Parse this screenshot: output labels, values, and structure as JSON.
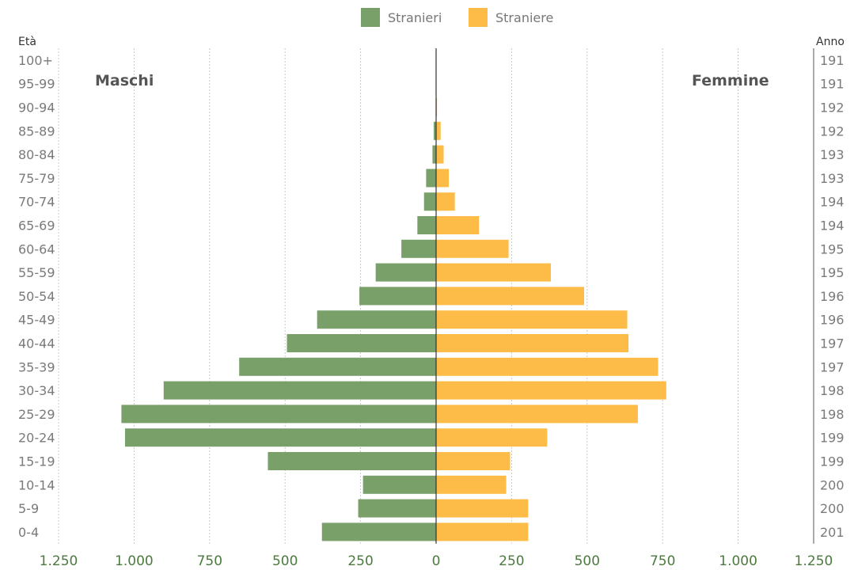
{
  "chart_data": {
    "type": "bar",
    "orientation": "horizontal-population-pyramid",
    "legend": [
      {
        "name": "Stranieri",
        "color": "#7aa06a"
      },
      {
        "name": "Straniere",
        "color": "#fdbb47"
      }
    ],
    "left_axis_title": "Età",
    "right_axis_title": "Anno",
    "left_side_label": "Maschi",
    "right_side_label": "Femmine",
    "categories": [
      "0-4",
      "5-9",
      "10-14",
      "15-19",
      "20-24",
      "25-29",
      "30-34",
      "35-39",
      "40-44",
      "45-49",
      "50-54",
      "55-59",
      "60-64",
      "65-69",
      "70-74",
      "75-79",
      "80-84",
      "85-89",
      "90-94",
      "95-99",
      "100+"
    ],
    "years": [
      "201",
      "200",
      "200",
      "199",
      "199",
      "198",
      "198",
      "197",
      "197",
      "196",
      "196",
      "195",
      "195",
      "194",
      "194",
      "193",
      "193",
      "192",
      "192",
      "191",
      "191"
    ],
    "series": [
      {
        "name": "Stranieri",
        "color": "#7aa06a",
        "values": [
          378,
          258,
          242,
          557,
          1030,
          1042,
          902,
          652,
          494,
          394,
          254,
          200,
          115,
          62,
          40,
          33,
          12,
          8,
          1,
          0,
          0
        ]
      },
      {
        "name": "Straniere",
        "color": "#fdbb47",
        "values": [
          305,
          305,
          232,
          245,
          368,
          668,
          762,
          735,
          637,
          633,
          490,
          380,
          240,
          142,
          62,
          42,
          25,
          15,
          3,
          1,
          0
        ]
      }
    ],
    "x_ticks": [
      "1.250",
      "1.000",
      "750",
      "500",
      "250",
      "0",
      "250",
      "500",
      "750",
      "1.000",
      "1.250"
    ],
    "xlim": [
      -1250,
      1250
    ],
    "grid": true,
    "legend_position": "top-center"
  }
}
